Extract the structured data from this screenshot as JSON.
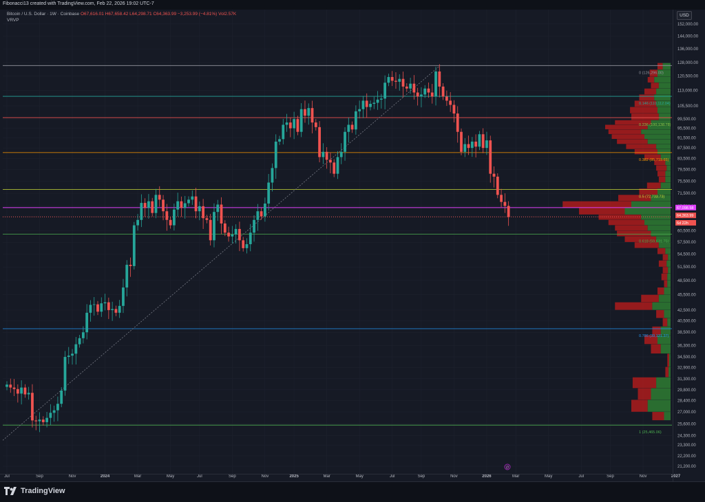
{
  "header": {
    "credit": "Fibonacci13 created with TradingView.com, Feb 22, 2026 19:02 UTC-7",
    "symbol": "Bitcoin / U.S. Dollar · 1W · Coinbase",
    "ohlc": "O67,616.01 H67,658.42 L64,298.71 C64,363.99 −3,253.99 (−4.81%) Vol2.57K",
    "indicator": "VRVP",
    "currency": "USD"
  },
  "footer": {
    "brand": "TradingView"
  },
  "colors": {
    "up": "#26a69a",
    "down": "#ef5350",
    "bg": "#161a25",
    "grid": "#1f2330",
    "vp_up": "#2e7d32",
    "vp_down": "#b71c1c"
  },
  "chart_data": {
    "type": "candlestick",
    "y_scale": "log",
    "ylim": [
      20500,
      162000
    ],
    "y_ticks": [
      21200,
      22200,
      23300,
      24300,
      25600,
      27000,
      28400,
      29800,
      31300,
      32900,
      34500,
      36300,
      38500,
      40500,
      42500,
      45500,
      48500,
      51500,
      54500,
      57500,
      60500,
      64500,
      67500,
      71500,
      75500,
      79500,
      83500,
      87500,
      91500,
      95500,
      99500,
      105500,
      113000,
      120500,
      128000,
      136000,
      144000,
      152000
    ],
    "y_tick_labels": [
      "21,200.00",
      "22,200.00",
      "23,300.00",
      "24,300.00",
      "25,600.00",
      "27,000.00",
      "28,400.00",
      "29,800.00",
      "31,300.00",
      "32,900.00",
      "34,500.00",
      "36,300.00",
      "38,500.00",
      "40,500.00",
      "42,500.00",
      "45,500.00",
      "48,500.00",
      "51,500.00",
      "54,500.00",
      "57,500.00",
      "60,500.00",
      "64,500.00",
      "67,500.00",
      "71,500.00",
      "75,500.00",
      "79,500.00",
      "83,500.00",
      "87,500.00",
      "91,500.00",
      "95,500.00",
      "99,500.00",
      "105,500.00",
      "113,000.00",
      "120,500.00",
      "128,000.00",
      "136,000.00",
      "144,000.00",
      "152,000.00"
    ],
    "x_ticks": [
      {
        "label": "Jul",
        "week": 0
      },
      {
        "label": "Sep",
        "week": 9
      },
      {
        "label": "Nov",
        "week": 18
      },
      {
        "label": "2024",
        "week": 27,
        "bold": true
      },
      {
        "label": "Mar",
        "week": 36
      },
      {
        "label": "May",
        "week": 45
      },
      {
        "label": "Jul",
        "week": 53
      },
      {
        "label": "Sep",
        "week": 62
      },
      {
        "label": "Nov",
        "week": 71
      },
      {
        "label": "2025",
        "week": 79,
        "bold": true
      },
      {
        "label": "Mar",
        "week": 88
      },
      {
        "label": "May",
        "week": 97
      },
      {
        "label": "Jul",
        "week": 106
      },
      {
        "label": "Sep",
        "week": 114
      },
      {
        "label": "Nov",
        "week": 123
      },
      {
        "label": "2026",
        "week": 132,
        "bold": true
      },
      {
        "label": "Mar",
        "week": 140
      },
      {
        "label": "May",
        "week": 149
      },
      {
        "label": "Jul",
        "week": 158
      },
      {
        "label": "Sep",
        "week": 166
      },
      {
        "label": "Nov",
        "week": 175
      },
      {
        "label": "2027",
        "week": 184,
        "bold": true
      }
    ],
    "closes": [
      30500,
      30100,
      29900,
      29300,
      30100,
      29200,
      29400,
      26000,
      25900,
      26100,
      25800,
      26300,
      26900,
      27200,
      28000,
      29700,
      34500,
      34700,
      35000,
      36500,
      37500,
      38500,
      42000,
      43500,
      43600,
      42200,
      43800,
      44000,
      42500,
      42700,
      42000,
      43300,
      47000,
      52000,
      51700,
      62000,
      63500,
      68500,
      67000,
      69000,
      65500,
      71000,
      69500,
      66000,
      63500,
      62000,
      66500,
      69000,
      67000,
      68400,
      69500,
      70500,
      66000,
      67500,
      64000,
      63500,
      58000,
      65800,
      68000,
      62500,
      60000,
      59000,
      59500,
      61000,
      58000,
      56000,
      57000,
      60000,
      63500,
      66000,
      64500,
      68300,
      75000,
      80000,
      90000,
      91000,
      97000,
      98000,
      95500,
      99500,
      94000,
      104000,
      101000,
      104500,
      98000,
      96000,
      84000,
      86000,
      83000,
      82000,
      78000,
      84000,
      86000,
      94000,
      97000,
      95000,
      103000,
      104000,
      108000,
      105000,
      106500,
      107000,
      108500,
      109000,
      117000,
      120000,
      118000,
      117500,
      119000,
      115000,
      114000,
      116500,
      112000,
      110000,
      111000,
      114000,
      112000,
      110000,
      123000,
      115000,
      110000,
      108000,
      106000,
      102000,
      94000,
      86000,
      89000,
      87500,
      90000,
      88000,
      93000,
      87500,
      90500,
      78000,
      77000,
      71000,
      68800,
      67600,
      64363
    ],
    "ranges": [
      [
        0,
        85000
      ],
      [
        0,
        0
      ],
      [
        0,
        0
      ]
    ],
    "levels": [
      {
        "label": "0 (126,296.00)",
        "value": 126296,
        "color": "#9598a1",
        "label_color": "#9598a1"
      },
      {
        "label": "0.146 (110,112.04)",
        "value": 110112,
        "color": "#26a69a",
        "label_color": "#26a69a"
      },
      {
        "label": "0.236 (100,138.78)",
        "value": 100139,
        "color": "#ef5350",
        "label_color": "#8bc34a"
      },
      {
        "label": "0.382 (85,719.65)",
        "value": 85720,
        "color": "#ff9800",
        "label_color": "#ff9800"
      },
      {
        "label": "0.5 (72,733.73)",
        "value": 72734,
        "color": "#cddc39",
        "label_color": "#cddc39"
      },
      {
        "label": "0.618 (59,631.75)",
        "value": 59632,
        "color": "#4caf50",
        "label_color": "#4caf50"
      },
      {
        "label": "0.786 (39,121.37)",
        "value": 39121,
        "color": "#2196f3",
        "label_color": "#2196f3"
      },
      {
        "label": "1 (25,465.06)",
        "value": 25465,
        "color": "#4caf50",
        "label_color": "#4caf50"
      }
    ],
    "extra_lines": [
      {
        "value": 67098,
        "color": "#e040fb"
      },
      {
        "value": 64363,
        "color": "#ef5350",
        "dotted": true
      }
    ],
    "price_labels": [
      {
        "label": "67,098.58",
        "value": 67098,
        "bg": "#e040fb",
        "fg": "#ffffff"
      },
      {
        "label": "64,363.99",
        "value": 64800,
        "bg": "#ef5350",
        "fg": "#ffffff"
      },
      {
        "label": "6d 22h",
        "value": 62700,
        "bg": "#ef5350",
        "fg": "#ffffff"
      }
    ],
    "volume_profile": [
      [
        26000,
        28,
        10
      ],
      [
        27000,
        60,
        35
      ],
      [
        28500,
        50,
        30
      ],
      [
        30000,
        58,
        22
      ],
      [
        31500,
        8,
        3
      ],
      [
        33000,
        5,
        2
      ],
      [
        35000,
        30,
        15
      ],
      [
        36500,
        40,
        20
      ],
      [
        38000,
        28,
        15
      ],
      [
        39500,
        12,
        5
      ],
      [
        41000,
        22,
        10
      ],
      [
        42500,
        85,
        28
      ],
      [
        44000,
        45,
        18
      ],
      [
        45500,
        20,
        10
      ],
      [
        47000,
        10,
        5
      ],
      [
        48500,
        14,
        5
      ],
      [
        50000,
        12,
        4
      ],
      [
        51500,
        18,
        6
      ],
      [
        53000,
        12,
        4
      ],
      [
        54500,
        20,
        8
      ],
      [
        56000,
        55,
        18
      ],
      [
        57500,
        70,
        22
      ],
      [
        59000,
        82,
        30
      ],
      [
        60500,
        85,
        35
      ],
      [
        62000,
        95,
        40
      ],
      [
        63500,
        110,
        45
      ],
      [
        65000,
        140,
        70
      ],
      [
        67000,
        165,
        60
      ],
      [
        69000,
        80,
        30
      ],
      [
        71000,
        48,
        20
      ],
      [
        73000,
        36,
        15
      ],
      [
        75000,
        18,
        8
      ],
      [
        77000,
        20,
        8
      ],
      [
        79000,
        22,
        6
      ],
      [
        81000,
        25,
        8
      ],
      [
        83000,
        40,
        15
      ],
      [
        85000,
        55,
        20
      ],
      [
        87000,
        68,
        22
      ],
      [
        89000,
        82,
        35
      ],
      [
        91000,
        90,
        40
      ],
      [
        93000,
        95,
        45
      ],
      [
        95000,
        100,
        35
      ],
      [
        97000,
        85,
        30
      ],
      [
        99000,
        60,
        18
      ],
      [
        102000,
        62,
        20
      ],
      [
        105000,
        55,
        22
      ],
      [
        108000,
        48,
        25
      ],
      [
        111000,
        40,
        22
      ],
      [
        114000,
        30,
        18
      ],
      [
        117000,
        35,
        25
      ],
      [
        120000,
        32,
        20
      ],
      [
        124000,
        20,
        12
      ]
    ],
    "watermark_symbol": "Ø"
  }
}
